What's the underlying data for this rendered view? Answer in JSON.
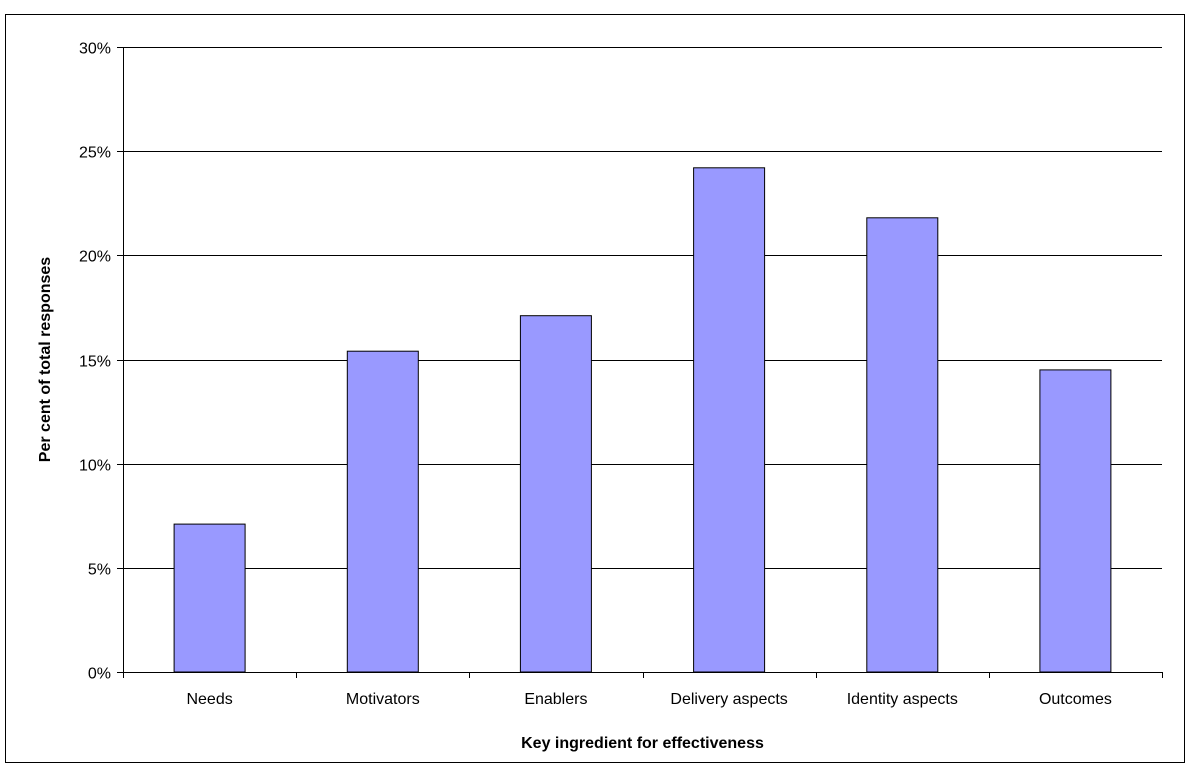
{
  "chart_data": {
    "type": "bar",
    "title": "",
    "xlabel": "Key ingredient for effectiveness",
    "ylabel": "Per cent of total responses",
    "categories": [
      "Needs",
      "Motivators",
      "Enablers",
      "Delivery aspects",
      "Identity aspects",
      "Outcomes"
    ],
    "values": [
      7.1,
      15.4,
      17.1,
      24.2,
      21.8,
      14.5
    ],
    "ylim": [
      0,
      30
    ],
    "yticks": [
      0,
      5,
      10,
      15,
      20,
      25,
      30
    ],
    "ytick_labels": [
      "0%",
      "5%",
      "10%",
      "15%",
      "20%",
      "25%",
      "30%"
    ],
    "grid": true,
    "legend": "none",
    "colors": {
      "bar_fill": "#9999ff",
      "bar_stroke": "#000000",
      "grid": "#000000",
      "background": "#ffffff"
    }
  }
}
